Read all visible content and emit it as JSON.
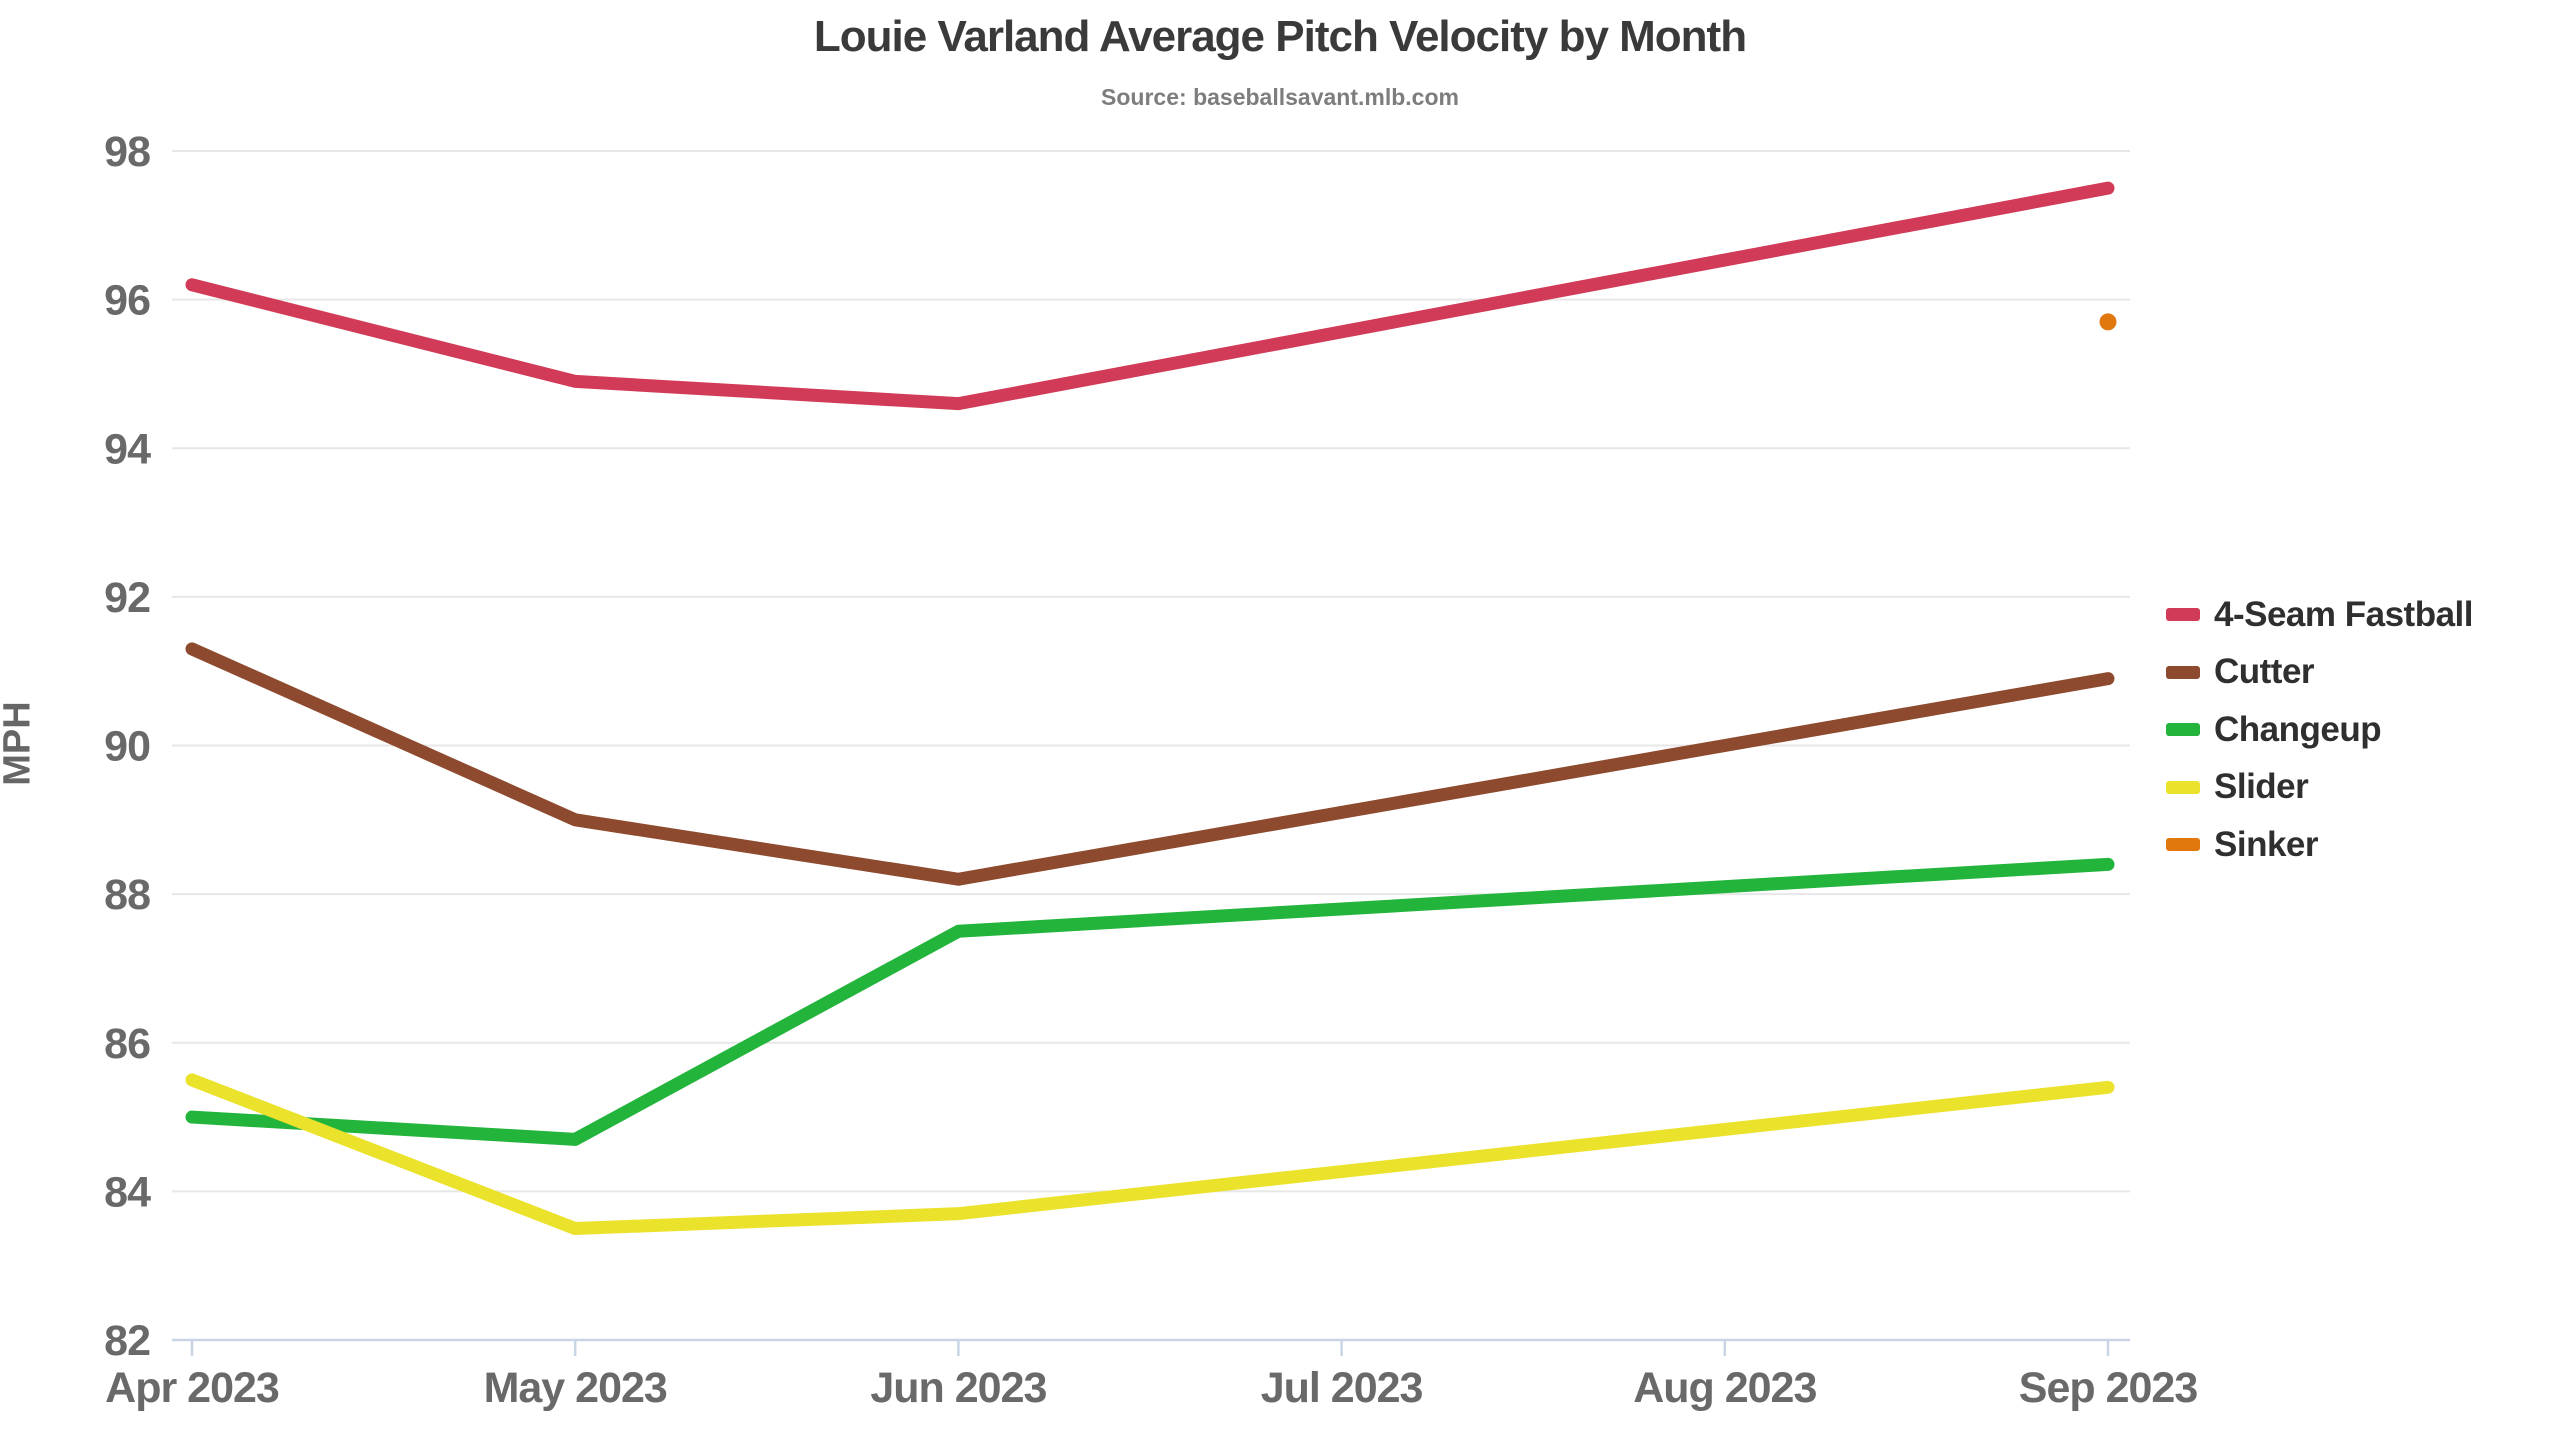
{
  "title": "Louie Varland Average Pitch Velocity by Month",
  "subtitle": "Source: baseballsavant.mlb.com",
  "ylabel": "MPH",
  "chart_data": {
    "type": "line",
    "categories": [
      "Apr 2023",
      "May 2023",
      "Jun 2023",
      "Jul 2023",
      "Aug 2023",
      "Sep 2023"
    ],
    "series": [
      {
        "name": "4-Seam Fastball",
        "color": "#d23b57",
        "values": [
          96.2,
          94.9,
          94.6,
          null,
          null,
          97.5
        ]
      },
      {
        "name": "Cutter",
        "color": "#8e4a2e",
        "values": [
          91.3,
          89.0,
          88.2,
          null,
          null,
          90.9
        ]
      },
      {
        "name": "Changeup",
        "color": "#23b43c",
        "values": [
          85.0,
          84.7,
          87.5,
          null,
          null,
          88.4
        ]
      },
      {
        "name": "Slider",
        "color": "#ebe22b",
        "values": [
          85.5,
          83.5,
          83.7,
          null,
          null,
          85.4
        ]
      },
      {
        "name": "Sinker",
        "color": "#e1780e",
        "values": [
          null,
          null,
          null,
          null,
          null,
          95.7
        ]
      }
    ],
    "ylim": [
      82,
      98
    ],
    "yticks": [
      82,
      84,
      86,
      88,
      90,
      92,
      94,
      96,
      98
    ],
    "grid": true,
    "legend_position": "right",
    "note_single_point_series": "Sinker is shown as a single dot at Sep 2023"
  },
  "colors": {
    "background": "#ffffff",
    "title_text": "#3a3a3a",
    "subtitle_text": "#7d7d7d",
    "tick_label_text": "#696969",
    "legend_text": "#2f2f2f",
    "gridline": "#e7e7e7",
    "axis_line": "#c9d4e4"
  }
}
